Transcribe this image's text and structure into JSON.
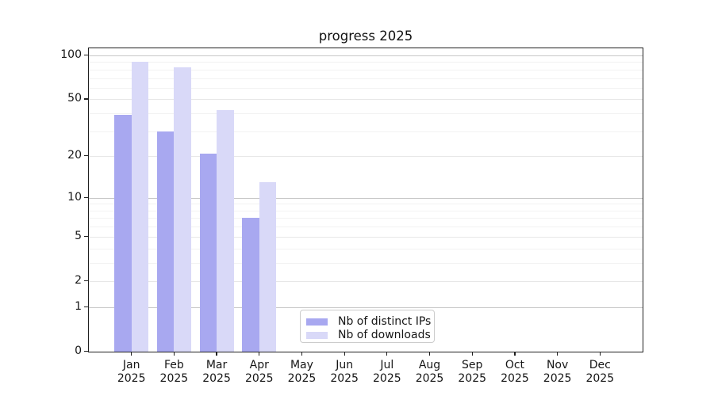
{
  "chart_data": {
    "type": "bar",
    "title": "progress 2025",
    "year": "2025",
    "categories": [
      "Jan",
      "Feb",
      "Mar",
      "Apr",
      "May",
      "Jun",
      "Jul",
      "Aug",
      "Sep",
      "Oct",
      "Nov",
      "Dec"
    ],
    "series": [
      {
        "name": "Nb of distinct IPs",
        "color": "#a8a8f0",
        "values": [
          39,
          30,
          21,
          7,
          0,
          0,
          0,
          0,
          0,
          0,
          0,
          0
        ]
      },
      {
        "name": "Nb of downloads",
        "color": "#d9d9f8",
        "values": [
          90,
          83,
          42,
          13,
          0,
          0,
          0,
          0,
          0,
          0,
          0,
          0
        ]
      }
    ],
    "yscale": "log10(1+v)",
    "ylim": [
      0,
      100
    ],
    "yticks": [
      0,
      1,
      2,
      5,
      10,
      20,
      50,
      100
    ],
    "yticks_decade": [
      1,
      10,
      100
    ],
    "yticks_minor": [
      3,
      4,
      6,
      7,
      8,
      9,
      30,
      40,
      60,
      70,
      80,
      90
    ],
    "xlabel": "",
    "ylabel": "",
    "grid": "horizontal",
    "legend": {
      "position": "bottom-center",
      "items": [
        "Nb of distinct IPs",
        "Nb of downloads"
      ]
    }
  }
}
